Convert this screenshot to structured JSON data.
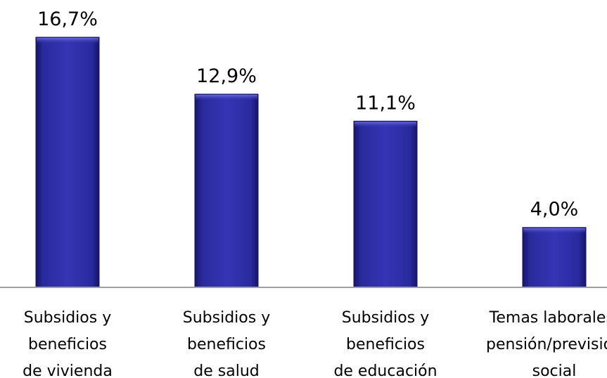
{
  "chart_data": {
    "type": "bar",
    "title": "",
    "xlabel": "",
    "ylabel": "",
    "categories": [
      [
        "Subsidios y",
        "beneficios",
        "de vivienda"
      ],
      [
        "Subsidios y",
        "beneficios",
        "de salud"
      ],
      [
        "Subsidios y",
        "beneficios",
        "de educación"
      ],
      [
        "Temas laborales/",
        "pensión/previsión",
        "social"
      ]
    ],
    "values": [
      16.7,
      12.9,
      11.1,
      4.0
    ],
    "value_labels": [
      "16,7%",
      "12,9%",
      "11,1%",
      "4,0%"
    ],
    "unit": "%",
    "ylim": [
      0,
      16.7
    ],
    "grid": false,
    "legend": "none",
    "bar_color": "#2a2a9e",
    "bar_highlight": "#5a5ad6",
    "bar_shadow": "#15156a",
    "axis_color": "#a0a0a0"
  }
}
